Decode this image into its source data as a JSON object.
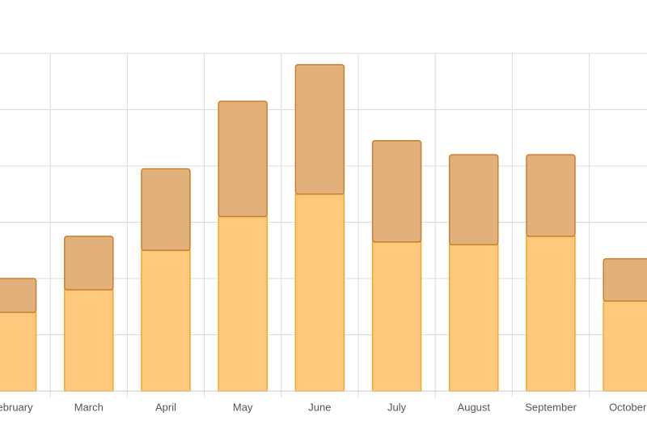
{
  "chart_data": {
    "type": "stacked_bar",
    "categories": [
      "February",
      "March",
      "April",
      "May",
      "June",
      "July",
      "August",
      "September",
      "October"
    ],
    "series": [
      {
        "color": "#fec97c",
        "values": [
          14,
          18,
          25,
          31,
          35,
          26.5,
          26,
          27.5,
          16
        ]
      },
      {
        "color": "#e2b07a",
        "values": [
          6,
          9.5,
          14.5,
          20.5,
          23,
          18,
          16,
          14.5,
          7.5
        ]
      }
    ],
    "ylim": [
      0,
      60
    ],
    "yticks": [
      0,
      10,
      20,
      30,
      40,
      50,
      60
    ],
    "grid": true
  }
}
